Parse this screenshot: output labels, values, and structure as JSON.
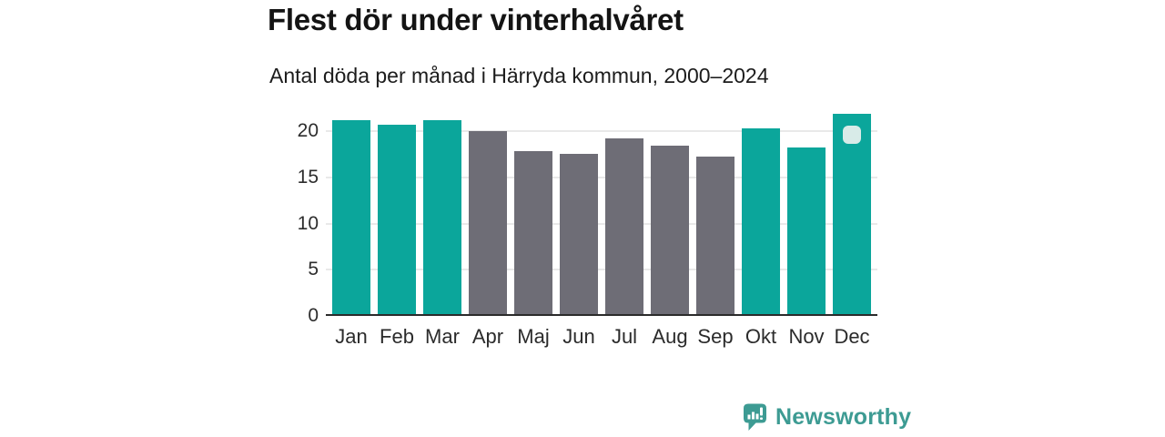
{
  "chart_data": {
    "type": "bar",
    "title": "Flest dör under vinterhalvåret",
    "subtitle": "Antal döda per månad i Härryda kommun, 2000–2024",
    "categories": [
      "Jan",
      "Feb",
      "Mar",
      "Apr",
      "Maj",
      "Jun",
      "Jul",
      "Aug",
      "Sep",
      "Okt",
      "Nov",
      "Dec"
    ],
    "values": [
      21.0,
      20.5,
      21.0,
      19.8,
      17.7,
      17.4,
      19.0,
      18.3,
      17.1,
      20.1,
      18.1,
      21.7
    ],
    "highlight": [
      true,
      true,
      true,
      false,
      false,
      false,
      false,
      false,
      false,
      true,
      true,
      true
    ],
    "highlighted_months_meaning": "vinterhalvåret (Okt–Mar)",
    "colors": {
      "highlight": "#0BA69B",
      "base": "#6E6D76",
      "gridline": "#E9E9E9",
      "axis_line": "#2B2B2B"
    },
    "yticks": [
      0,
      5,
      10,
      15,
      20
    ],
    "ylim": [
      0,
      22.5
    ],
    "grid": "horizontal",
    "legend": "none",
    "xlabel": "",
    "ylabel": "",
    "marker_handle": {
      "category": "Dec",
      "color": "#D8EBE8"
    }
  },
  "footer": {
    "brand": "Newsworthy",
    "brand_color": "#3D9B93",
    "logo_icon": "speech-bubble-with-bar-chart-and-exclamation"
  }
}
